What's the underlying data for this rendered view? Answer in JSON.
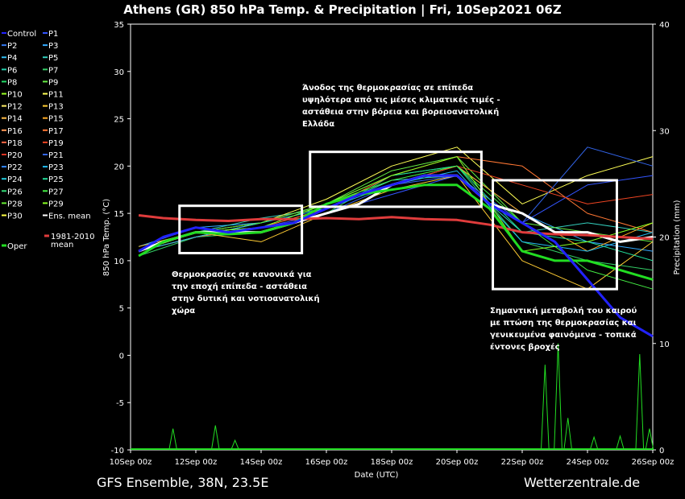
{
  "header": {
    "title": "Athens  (GR)  850 hPa Temp. & Precipitation | Fri, 10Sep2021 06Z"
  },
  "footer": {
    "left": "GFS Ensemble, 38N, 23.5E",
    "right": "Wetterzentrale.de"
  },
  "chart_data": {
    "type": "line",
    "title": "Athens  (GR)  850 hPa Temp. & Precipitation | Fri, 10Sep2021 06Z",
    "xlabel": "Date (UTC)",
    "ylabel": "850 hPa Temp. (°C)",
    "y2label": "Precipitation (mm)",
    "xlim": [
      0,
      16
    ],
    "x_ticks": [
      0,
      2,
      4,
      6,
      8,
      10,
      12,
      14,
      16
    ],
    "x_tick_labels": [
      "10Sep 00z",
      "12Sep 00z",
      "14Sep 00z",
      "16Sep 00z",
      "18Sep 00z",
      "20Sep 00z",
      "22Sep 00z",
      "24Sep 00z",
      "26Sep 00z"
    ],
    "ylim": [
      -10,
      35
    ],
    "y_ticks": [
      -10,
      -5,
      0,
      5,
      10,
      15,
      20,
      25,
      30,
      35
    ],
    "y2lim": [
      0,
      40
    ],
    "y2_ticks": [
      0,
      10,
      20,
      30,
      40
    ],
    "legend_placement": "left-outside",
    "series": [
      {
        "name": "Ens. mean",
        "color": "#ffffff",
        "x": [
          0.25,
          1,
          2,
          3,
          4,
          5,
          6,
          7,
          8,
          9,
          10,
          11,
          12,
          13,
          14,
          15,
          16
        ],
        "values": [
          11,
          12,
          13,
          13,
          13,
          14,
          15,
          16,
          18,
          19,
          19,
          16,
          15,
          13,
          13,
          12,
          12.5
        ]
      },
      {
        "name": "1981-2010 mean",
        "color": "#e03c3c",
        "x": [
          0.25,
          1,
          2,
          3,
          4,
          5,
          6,
          7,
          8,
          9,
          10,
          11,
          12,
          13,
          14,
          15,
          16
        ],
        "values": [
          14.8,
          14.5,
          14.3,
          14.2,
          14.4,
          14.4,
          14.5,
          14.4,
          14.6,
          14.4,
          14.3,
          13.8,
          13,
          12.8,
          12.7,
          12.5,
          12.3
        ]
      },
      {
        "name": "Oper",
        "color": "#22dd22",
        "x": [
          0.25,
          1,
          2,
          3,
          4,
          5,
          6,
          7,
          8,
          9,
          10,
          11,
          12,
          13,
          14,
          15,
          16
        ],
        "values": [
          10.5,
          12,
          13,
          12.8,
          13,
          14,
          16,
          17,
          17.5,
          18,
          18,
          15.5,
          11,
          10,
          10,
          9,
          8
        ]
      },
      {
        "name": "Control",
        "color": "#2222ff",
        "x": [
          0.25,
          1,
          2,
          3,
          4,
          5,
          6,
          7,
          8,
          9,
          10,
          11,
          12,
          13,
          14,
          15,
          16
        ],
        "values": [
          11,
          12.5,
          13.5,
          13,
          13.5,
          14,
          15.5,
          17,
          18,
          19,
          19,
          16,
          14,
          12,
          8,
          4,
          2
        ]
      },
      {
        "name": "P1",
        "color": "#3355ff",
        "x": [
          0.25,
          2,
          4,
          6,
          8,
          10,
          12,
          14,
          16
        ],
        "values": [
          11,
          13,
          13.5,
          15,
          17,
          19,
          14,
          18,
          19
        ]
      },
      {
        "name": "P3",
        "color": "#33aaff",
        "x": [
          0.25,
          2,
          4,
          6,
          8,
          10,
          12,
          14,
          16
        ],
        "values": [
          11.5,
          13.5,
          14,
          16,
          18,
          20,
          15,
          12,
          11
        ]
      },
      {
        "name": "P5",
        "color": "#33ccbb",
        "x": [
          0.25,
          2,
          4,
          6,
          8,
          10,
          12,
          14,
          16
        ],
        "values": [
          11,
          13,
          14.5,
          15.5,
          18.5,
          19,
          13,
          14,
          13
        ]
      },
      {
        "name": "P7",
        "color": "#33cc66",
        "x": [
          0.25,
          2,
          4,
          6,
          8,
          10,
          12,
          14,
          16
        ],
        "values": [
          10.5,
          12.5,
          13,
          15,
          19,
          20,
          12,
          10,
          9
        ]
      },
      {
        "name": "P9",
        "color": "#66ee44",
        "x": [
          0.25,
          2,
          4,
          6,
          8,
          10,
          12,
          14,
          16
        ],
        "values": [
          11,
          13,
          13.5,
          16,
          19.5,
          21,
          14,
          13,
          12
        ]
      },
      {
        "name": "P11",
        "color": "#ffff55",
        "x": [
          0.25,
          2,
          4,
          6,
          8,
          10,
          12,
          14,
          16
        ],
        "values": [
          11,
          12.5,
          14,
          16.5,
          20,
          22,
          16,
          19,
          21
        ]
      },
      {
        "name": "P13",
        "color": "#ffcc33",
        "x": [
          0.25,
          2,
          4,
          6,
          8,
          10,
          12,
          14,
          16
        ],
        "values": [
          11.5,
          13,
          12,
          15,
          17.5,
          19,
          10,
          7,
          12
        ]
      },
      {
        "name": "P15",
        "color": "#ffaa22",
        "x": [
          0.25,
          2,
          4,
          6,
          8,
          10,
          12,
          14,
          16
        ],
        "values": [
          11,
          13,
          14,
          16,
          18,
          20,
          15,
          11,
          14
        ]
      },
      {
        "name": "P17",
        "color": "#ff7733",
        "x": [
          0.25,
          2,
          4,
          6,
          8,
          10,
          12,
          14,
          16
        ],
        "values": [
          11,
          12.5,
          13.5,
          15.5,
          19,
          21,
          20,
          15,
          13
        ]
      },
      {
        "name": "P19",
        "color": "#ee4422",
        "x": [
          0.25,
          2,
          4,
          6,
          8,
          10,
          12,
          14,
          16
        ],
        "values": [
          11,
          13,
          14,
          16,
          18,
          20,
          18,
          16,
          17
        ]
      },
      {
        "name": "P21",
        "color": "#3366ee",
        "x": [
          0.25,
          2,
          4,
          6,
          8,
          10,
          12,
          14,
          16
        ],
        "values": [
          11,
          13,
          13,
          15,
          18,
          19,
          14,
          22,
          20
        ]
      },
      {
        "name": "P23",
        "color": "#22bbee",
        "x": [
          0.25,
          2,
          4,
          6,
          8,
          10,
          12,
          14,
          16
        ],
        "values": [
          11,
          12.5,
          14,
          15.5,
          18,
          19.5,
          12,
          11,
          13
        ]
      },
      {
        "name": "P25",
        "color": "#22dd99",
        "x": [
          0.25,
          2,
          4,
          6,
          8,
          10,
          12,
          14,
          16
        ],
        "values": [
          11,
          13,
          13.5,
          16,
          19,
          20,
          13,
          12,
          10
        ]
      },
      {
        "name": "P27",
        "color": "#44ee44",
        "x": [
          0.25,
          2,
          4,
          6,
          8,
          10,
          12,
          14,
          16
        ],
        "values": [
          11,
          13,
          14,
          16,
          18.5,
          20,
          14,
          9,
          7
        ]
      },
      {
        "name": "P29",
        "color": "#88ff22",
        "x": [
          0.25,
          2,
          4,
          6,
          8,
          10,
          12,
          14,
          16
        ],
        "values": [
          11,
          13,
          13.5,
          16,
          19,
          21,
          11,
          12,
          14
        ]
      }
    ],
    "legend": [
      [
        "Control",
        "P1"
      ],
      [
        "P2",
        "P3"
      ],
      [
        "P4",
        "P5"
      ],
      [
        "P6",
        "P7"
      ],
      [
        "P8",
        "P9"
      ],
      [
        "P10",
        "P11"
      ],
      [
        "P12",
        "P13"
      ],
      [
        "P14",
        "P15"
      ],
      [
        "P16",
        "P17"
      ],
      [
        "P18",
        "P19"
      ],
      [
        "P20",
        "P21"
      ],
      [
        "P22",
        "P23"
      ],
      [
        "P24",
        "P25"
      ],
      [
        "P26",
        "P27"
      ],
      [
        "P28",
        "P29"
      ],
      [
        "P30",
        "Ens. mean"
      ]
    ],
    "legend_colors": [
      [
        "#2222ff",
        "#3355ff"
      ],
      [
        "#3377ee",
        "#33aaff"
      ],
      [
        "#33bbee",
        "#33ccbb"
      ],
      [
        "#22ccaa",
        "#33cc66"
      ],
      [
        "#22dd66",
        "#66ee44"
      ],
      [
        "#99ff22",
        "#ffff55"
      ],
      [
        "#ffee66",
        "#ffcc33"
      ],
      [
        "#ffbb44",
        "#ffaa22"
      ],
      [
        "#ff9955",
        "#ff7733"
      ],
      [
        "#ff6644",
        "#ee4422"
      ],
      [
        "#dd3322",
        "#3366ee"
      ],
      [
        "#3388ff",
        "#22bbee"
      ],
      [
        "#22ccdd",
        "#22dd99"
      ],
      [
        "#33dd77",
        "#44ee44"
      ],
      [
        "#66ee33",
        "#88ff22"
      ],
      [
        "#ffff44",
        "#ffffff"
      ]
    ],
    "legend_extra": {
      "oper": "Oper",
      "clim_line1": "1981-2010",
      "clim_line2": "mean"
    },
    "precipitation": {
      "color": "#22dd22",
      "spikes": [
        {
          "x": 1.3,
          "value": 2
        },
        {
          "x": 2.6,
          "value": 2.3
        },
        {
          "x": 3.2,
          "value": 0.9
        },
        {
          "x": 12.7,
          "value": 8
        },
        {
          "x": 13.1,
          "value": 10
        },
        {
          "x": 13.4,
          "value": 3
        },
        {
          "x": 14.2,
          "value": 1.2
        },
        {
          "x": 15.0,
          "value": 1.3
        },
        {
          "x": 15.6,
          "value": 9
        },
        {
          "x": 15.9,
          "value": 2
        }
      ]
    },
    "annotations": [
      {
        "lines": [
          "Θερμοκρασίες σε κανονικά για",
          "την εποχή επίπεδα - αστάθεια",
          "στην δυτική και νοτιοανατολική",
          "χώρα"
        ]
      },
      {
        "lines": [
          "Άνοδος της θερμοκρασίας σε επίπεδα",
          "υψηλότερα από τις μέσες κλιματικές τιμές -",
          "αστάθεια στην βόρεια και βορειοανατολική",
          "Ελλάδα"
        ]
      },
      {
        "lines": [
          "Σημαντική μεταβολή του καιρού",
          "με πτώση της θερμοκρασίας και",
          "γενικευμένα φαινόμενα - τοπικά",
          "έντονες βροχές"
        ]
      }
    ],
    "boxes": [
      {
        "x0": 1.5,
        "x1": 5.25,
        "y0": 10.8,
        "y1": 15.8
      },
      {
        "x0": 5.5,
        "x1": 10.75,
        "y0": 15.7,
        "y1": 21.5
      },
      {
        "x0": 11.1,
        "x1": 14.9,
        "y0": 7,
        "y1": 18.5
      }
    ]
  }
}
